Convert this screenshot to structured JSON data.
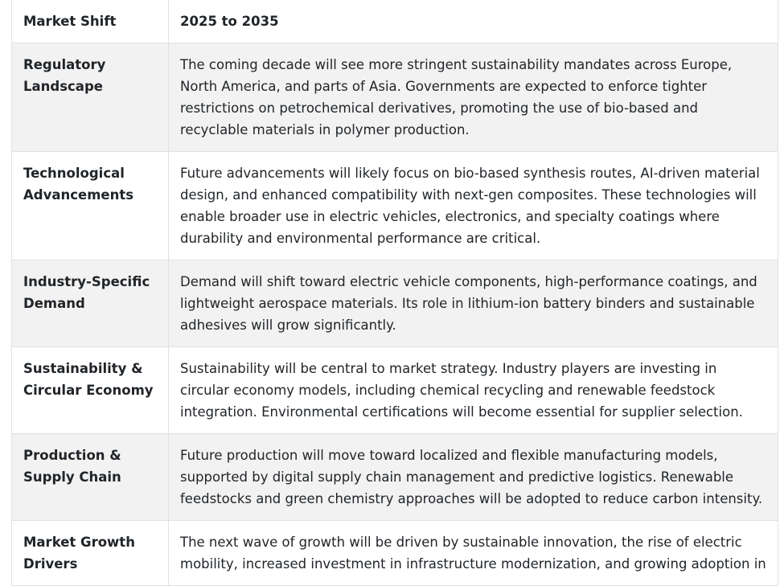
{
  "table": {
    "headers": [
      "Market Shift",
      "2025 to 2035"
    ],
    "rows": [
      {
        "label": "Regulatory Landscape",
        "text": "The coming decade will see more stringent sustainability mandates across Europe, North America, and parts of Asia. Governments are expected to enforce tighter restrictions on petrochemical derivatives, promoting the use of bio-based and recyclable materials in polymer production."
      },
      {
        "label": "Technological Advancements",
        "text": "Future advancements will likely focus on bio-based synthesis routes, AI-driven material design, and enhanced compatibility with next-gen composites. These technologies will enable broader use in electric vehicles, electronics, and specialty coatings where durability and environmental performance are critical."
      },
      {
        "label": "Industry-Specific Demand",
        "text": "Demand will shift toward electric vehicle components, high-performance coatings, and lightweight aerospace materials. Its role in lithium-ion battery binders and sustainable adhesives will grow significantly."
      },
      {
        "label": "Sustainability & Circular Economy",
        "text": "Sustainability will be central to market strategy. Industry players are investing in circular economy models, including chemical recycling and renewable feedstock integration. Environmental certifications will become essential for supplier selection."
      },
      {
        "label": "Production & Supply Chain",
        "text": "Future production will move toward localized and flexible manufacturing models, supported by digital supply chain management and predictive logistics. Renewable feedstocks and green chemistry approaches will be adopted to reduce carbon intensity."
      },
      {
        "label": "Market Growth Drivers",
        "text": "The next wave of growth will be driven by sustainable innovation, the rise of electric mobility, increased investment in infrastructure modernization, and growing adoption in"
      }
    ]
  }
}
